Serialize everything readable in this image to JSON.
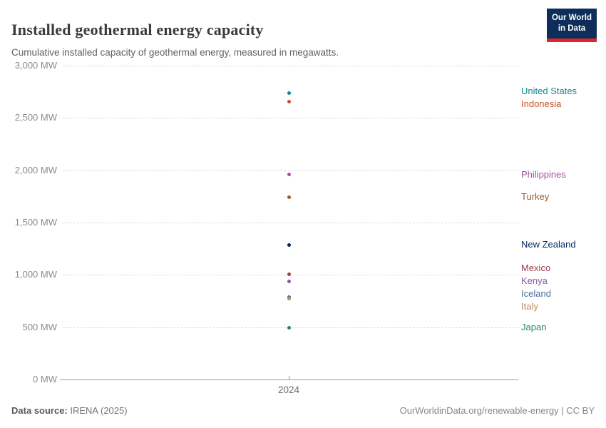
{
  "header": {
    "title": "Installed geothermal energy capacity",
    "subtitle": "Cumulative installed capacity of geothermal energy, measured in megawatts.",
    "logo": {
      "line1": "Our World",
      "line2": "in Data"
    },
    "logo_colors": {
      "background": "#0d2e5a",
      "underline": "#e0262c"
    }
  },
  "chart_data": {
    "type": "scatter",
    "title": "Installed geothermal energy capacity",
    "xlabel": "",
    "ylabel": "MW",
    "x": [
      2024
    ],
    "x_tick_label": "2024",
    "ylim": [
      0,
      3000
    ],
    "grid": "horizontal-dashed",
    "legend_position": "right-entity-labels",
    "y_ticks": [
      {
        "value": 0,
        "label": "0 MW"
      },
      {
        "value": 500,
        "label": "500 MW"
      },
      {
        "value": 1000,
        "label": "1,000 MW"
      },
      {
        "value": 1500,
        "label": "1,500 MW"
      },
      {
        "value": 2000,
        "label": "2,000 MW"
      },
      {
        "value": 2500,
        "label": "2,500 MW"
      },
      {
        "value": 3000,
        "label": "3,000 MW"
      }
    ],
    "series": [
      {
        "name": "United States",
        "value": 2740,
        "color": "#0c8a8f"
      },
      {
        "name": "Indonesia",
        "value": 2653,
        "color": "#c4512c"
      },
      {
        "name": "Philippines",
        "value": 1958,
        "color": "#a2559c"
      },
      {
        "name": "Turkey",
        "value": 1743,
        "color": "#a0592f"
      },
      {
        "name": "New Zealand",
        "value": 1286,
        "color": "#00295b"
      },
      {
        "name": "Mexico",
        "value": 1003,
        "color": "#a13b4d"
      },
      {
        "name": "Kenya",
        "value": 940,
        "color": "#8859a5"
      },
      {
        "name": "Iceland",
        "value": 790,
        "color": "#4c6a9c"
      },
      {
        "name": "Italy",
        "value": 772,
        "color": "#be8e55"
      },
      {
        "name": "Japan",
        "value": 495,
        "color": "#2c8465"
      }
    ]
  },
  "footer": {
    "source_label": "Data source:",
    "source_value": " IRENA (2025)",
    "credit": "OurWorldinData.org/renewable-energy | CC BY"
  }
}
